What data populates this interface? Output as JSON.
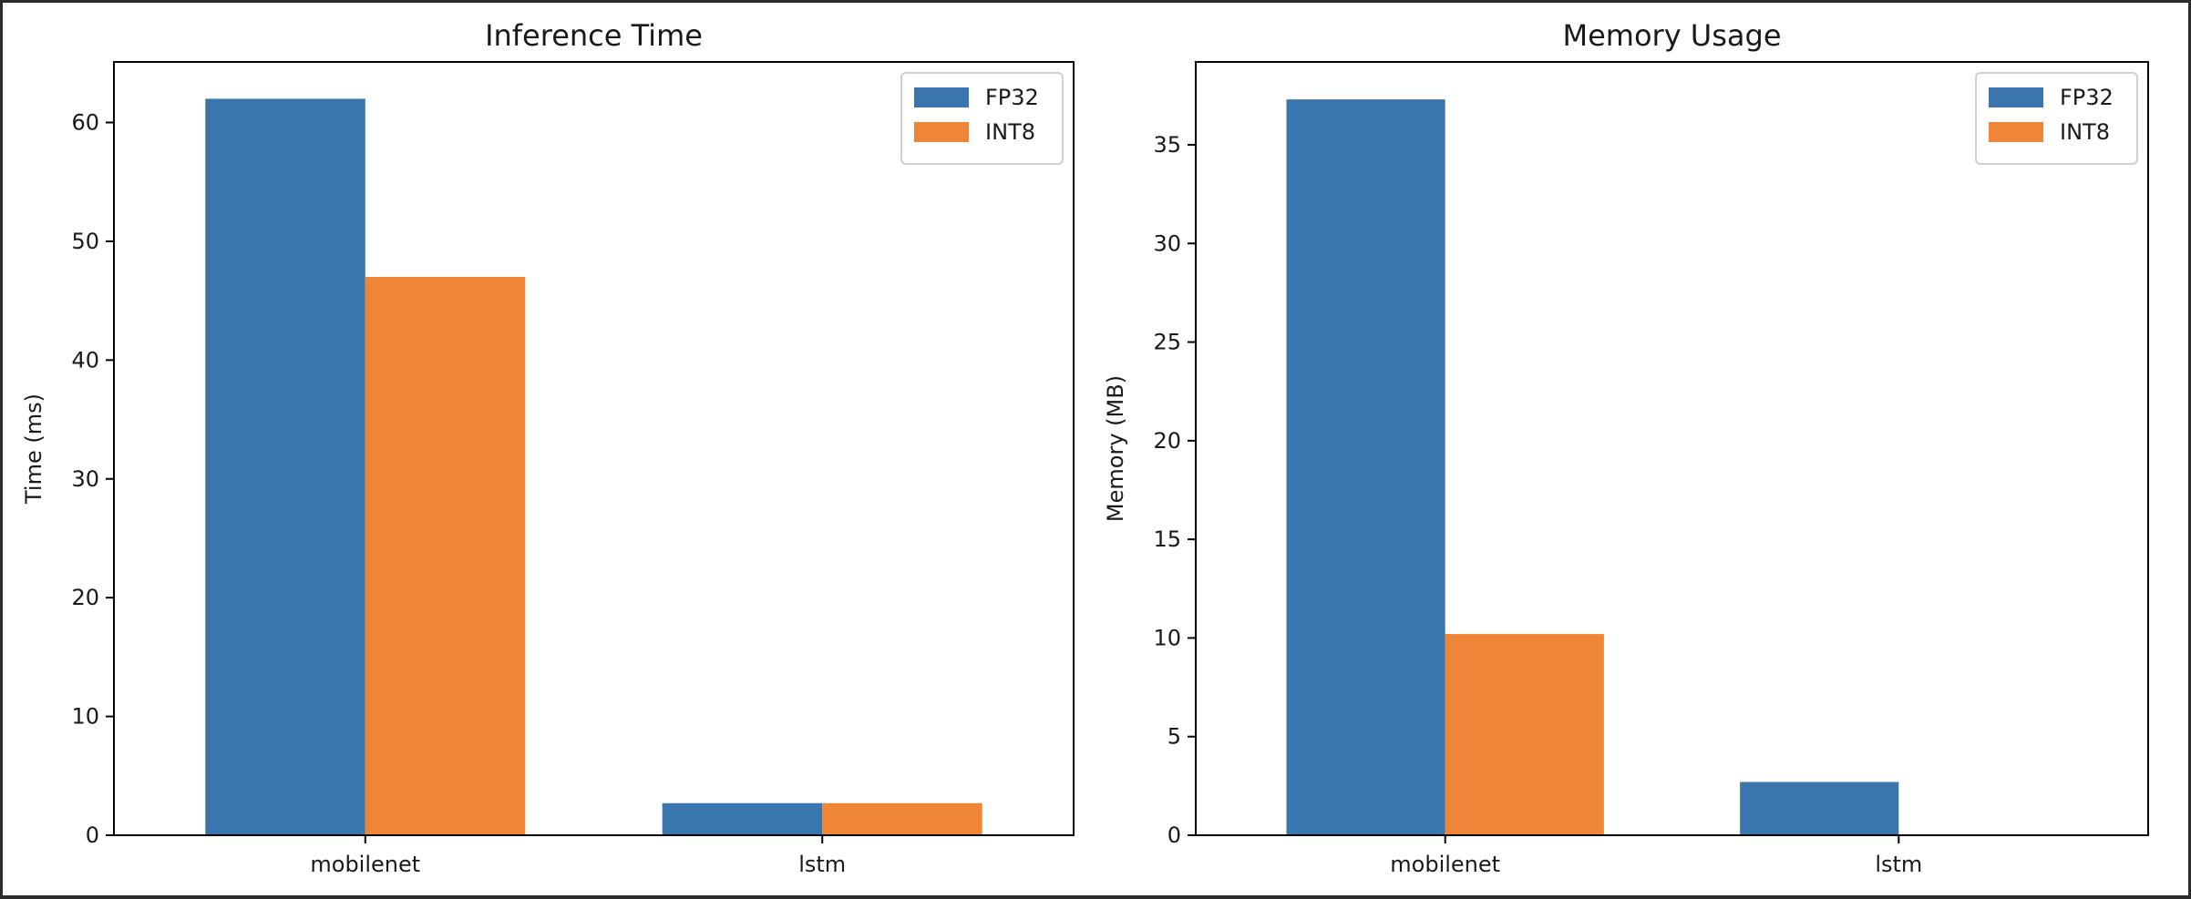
{
  "colors": {
    "fp32": "#3a75ae",
    "int8": "#ef8536",
    "axis": "#000000",
    "legend_border": "#d0d0d0"
  },
  "chart_data": [
    {
      "type": "bar",
      "title": "Inference Time",
      "xlabel": "",
      "ylabel": "Time (ms)",
      "categories": [
        "mobilenet",
        "lstm"
      ],
      "series": [
        {
          "name": "FP32",
          "values": [
            62.0,
            2.7
          ]
        },
        {
          "name": "INT8",
          "values": [
            47.0,
            2.7
          ]
        }
      ],
      "ylim": [
        0,
        65.1
      ],
      "yticks": [
        0,
        10,
        20,
        30,
        40,
        50,
        60
      ],
      "grid": false,
      "legend": "top-right"
    },
    {
      "type": "bar",
      "title": "Memory Usage",
      "xlabel": "",
      "ylabel": "Memory (MB)",
      "categories": [
        "mobilenet",
        "lstm"
      ],
      "series": [
        {
          "name": "FP32",
          "values": [
            37.3,
            2.7
          ]
        },
        {
          "name": "INT8",
          "values": [
            10.2,
            0.0
          ]
        }
      ],
      "ylim": [
        0,
        39.2
      ],
      "yticks": [
        0,
        5,
        10,
        15,
        20,
        25,
        30,
        35
      ],
      "grid": false,
      "legend": "top-right"
    }
  ]
}
